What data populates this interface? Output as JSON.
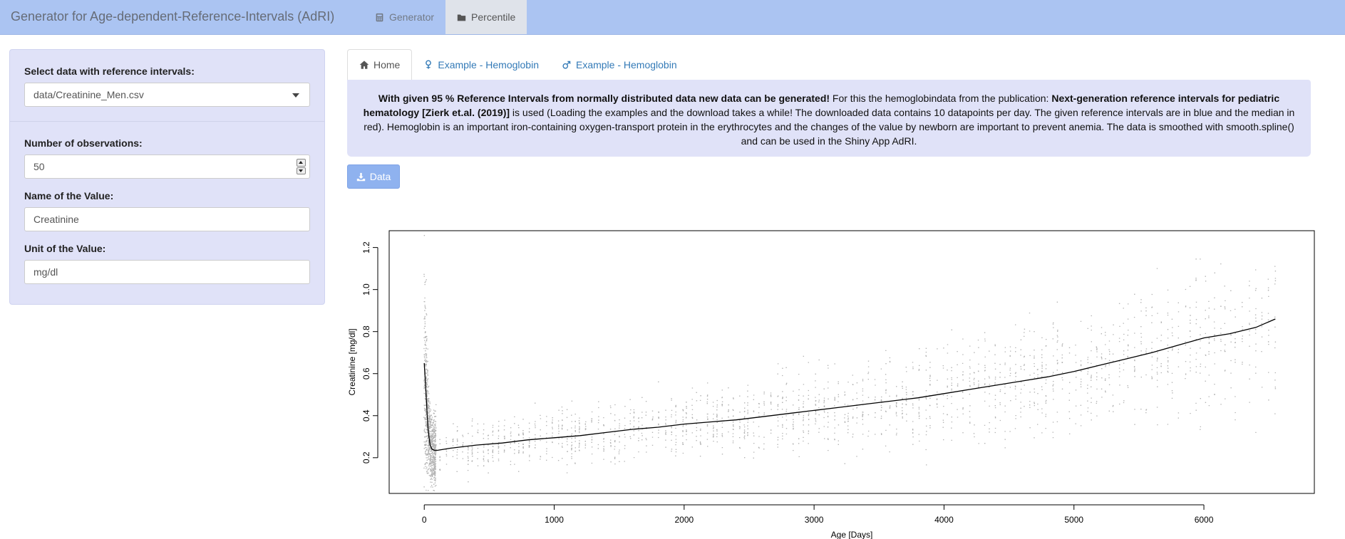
{
  "navbar": {
    "title": "Generator for Age-dependent-Reference-Intervals (AdRI)",
    "tabs": [
      {
        "label": "Generator",
        "icon": "calculator-icon"
      },
      {
        "label": "Percentile",
        "icon": "folder-icon"
      }
    ]
  },
  "sidebar": {
    "select_label": "Select data with reference intervals:",
    "select_value": "data/Creatinine_Men.csv",
    "obs_label": "Number of observations:",
    "obs_value": "50",
    "name_label": "Name of the Value:",
    "name_value": "Creatinine",
    "unit_label": "Unit of the Value:",
    "unit_value": "mg/dl"
  },
  "tabs": [
    {
      "label": "Home",
      "icon": "home-icon"
    },
    {
      "label": "Example - Hemoglobin",
      "icon": "female-icon"
    },
    {
      "label": "Example - Hemoglobin",
      "icon": "male-icon"
    }
  ],
  "info": {
    "bold1": "With given 95 % Reference Intervals from normally distributed data new data can be generated!",
    "text1": " For this the hemoglobindata from the publication: ",
    "bold2": "Next-generation reference intervals for pediatric hematology [Zierk et.al. (2019)]",
    "text2": " is used (Loading the examples and the download takes a while! The downloaded data contains 10 datapoints per day. The given reference intervals are in blue and the median in red). Hemoglobin is an important iron-containing oxygen-transport protein in the erythrocytes and the changes of the value by newborn are important to prevent anemia. The data is smoothed with smooth.spline() and can be used in the Shiny App AdRI."
  },
  "download_button": {
    "label": "Data",
    "icon": "download-icon"
  },
  "colors": {
    "points": "#b3b3b3",
    "line": "#000000"
  },
  "chart_data": {
    "type": "scatter",
    "xlabel": "Age [Days]",
    "ylabel": "Creatinine [mg/dl]",
    "xlim": [
      -270,
      6850
    ],
    "ylim": [
      0.03,
      1.28
    ],
    "xticks": [
      0,
      1000,
      2000,
      3000,
      4000,
      5000,
      6000
    ],
    "yticks": [
      0.2,
      0.4,
      0.6,
      0.8,
      1.0,
      1.2
    ],
    "ytick_labels": [
      "0.2",
      "0.4",
      "0.6",
      "0.8",
      "1.0",
      "1.2"
    ],
    "median_series": {
      "x": [
        0,
        10,
        20,
        30,
        45,
        60,
        80,
        100,
        200,
        400,
        600,
        800,
        1000,
        1200,
        1400,
        1600,
        1800,
        2000,
        2200,
        2400,
        2600,
        2800,
        3000,
        3200,
        3400,
        3600,
        3800,
        4000,
        4200,
        4400,
        4600,
        4800,
        5000,
        5200,
        5400,
        5600,
        5800,
        6000,
        6200,
        6400,
        6550
      ],
      "y": [
        0.65,
        0.55,
        0.43,
        0.33,
        0.26,
        0.24,
        0.235,
        0.235,
        0.245,
        0.26,
        0.27,
        0.285,
        0.295,
        0.305,
        0.32,
        0.335,
        0.345,
        0.36,
        0.37,
        0.38,
        0.395,
        0.41,
        0.425,
        0.44,
        0.455,
        0.47,
        0.485,
        0.505,
        0.525,
        0.545,
        0.565,
        0.585,
        0.61,
        0.64,
        0.67,
        0.7,
        0.735,
        0.77,
        0.79,
        0.82,
        0.86
      ]
    },
    "spread_series": {
      "name": "",
      "note_points_generated_from_median": true,
      "x_step_days": 50,
      "relative_spread": [
        0.55,
        0.45,
        0.42,
        0.4,
        0.38,
        0.36,
        0.35,
        0.34,
        0.34,
        0.34,
        0.33,
        0.33,
        0.33,
        0.33,
        0.33
      ]
    }
  }
}
